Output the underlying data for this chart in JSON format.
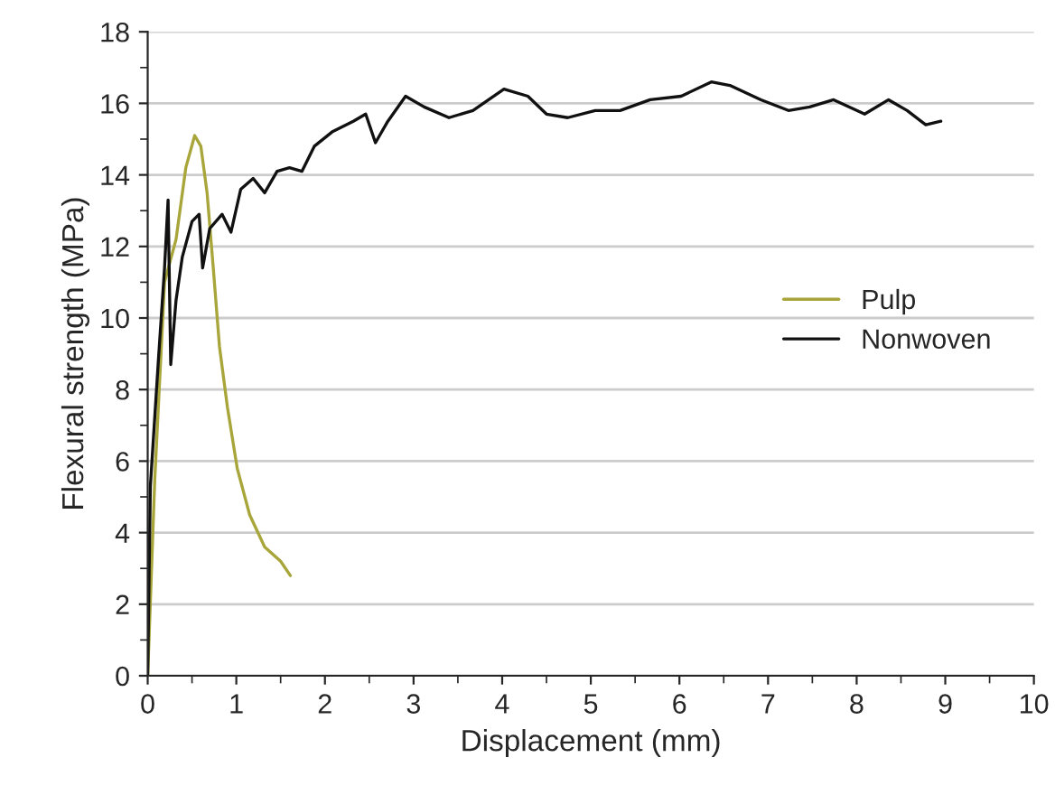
{
  "chart_data": {
    "type": "line",
    "xlabel": "Displacement (mm)",
    "ylabel": "Flexural strength (MPa)",
    "xlim": [
      0,
      10
    ],
    "xticks": [
      0,
      1,
      2,
      3,
      4,
      5,
      6,
      7,
      8,
      9,
      10
    ],
    "ylim": [
      0,
      18
    ],
    "yticks": [
      0,
      2,
      4,
      6,
      8,
      10,
      12,
      14,
      16,
      18
    ],
    "grid": "y",
    "legend": "right",
    "marker": "none",
    "line_style": "solid",
    "series": [
      {
        "name": "Pulp",
        "color": "#a8a63a",
        "x": [
          0,
          0.08,
          0.19,
          0.32,
          0.43,
          0.53,
          0.6,
          0.67,
          0.74,
          0.81,
          0.9,
          1.01,
          1.15,
          1.32,
          1.5,
          1.61
        ],
        "values": [
          0,
          5.5,
          11.0,
          12.2,
          14.2,
          15.1,
          14.8,
          13.5,
          11.4,
          9.2,
          7.5,
          5.8,
          4.5,
          3.6,
          3.2,
          2.8
        ]
      },
      {
        "name": "Nonwoven",
        "color": "#111111",
        "x": [
          0,
          0.03,
          0.12,
          0.19,
          0.23,
          0.26,
          0.32,
          0.39,
          0.5,
          0.58,
          0.62,
          0.7,
          0.84,
          0.94,
          1.05,
          1.19,
          1.32,
          1.46,
          1.6,
          1.74,
          1.88,
          2.08,
          2.32,
          2.46,
          2.57,
          2.71,
          2.91,
          3.12,
          3.4,
          3.67,
          4.02,
          4.29,
          4.5,
          4.74,
          5.05,
          5.33,
          5.67,
          6.02,
          6.36,
          6.57,
          6.92,
          7.23,
          7.47,
          7.74,
          8.09,
          8.36,
          8.57,
          8.78,
          8.95
        ],
        "values": [
          0,
          5.3,
          8.8,
          11.4,
          13.3,
          8.7,
          10.5,
          11.7,
          12.7,
          12.9,
          11.4,
          12.5,
          12.9,
          12.4,
          13.6,
          13.9,
          13.5,
          14.1,
          14.2,
          14.1,
          14.8,
          15.2,
          15.5,
          15.7,
          14.9,
          15.5,
          16.2,
          15.9,
          15.6,
          15.8,
          16.4,
          16.2,
          15.7,
          15.6,
          15.8,
          15.8,
          16.1,
          16.2,
          16.6,
          16.5,
          16.1,
          15.8,
          15.9,
          16.1,
          15.7,
          16.1,
          15.8,
          15.4,
          15.5
        ]
      }
    ]
  }
}
